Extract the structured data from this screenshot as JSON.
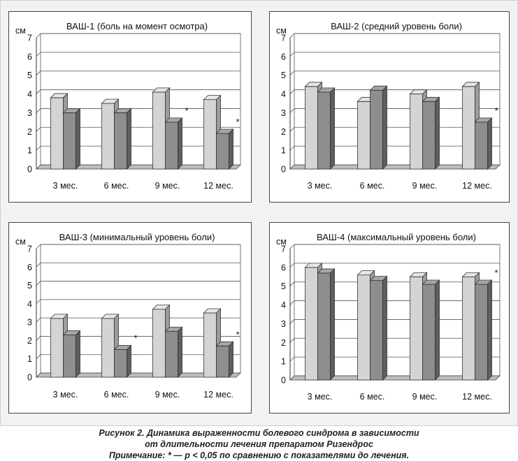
{
  "chart_data": [
    {
      "type": "bar",
      "title": "ВАШ-1 (боль на момент осмотра)",
      "ylabel": "см",
      "ylim": [
        0,
        7
      ],
      "yticks": [
        "0",
        "1",
        "2",
        "3",
        "4",
        "5",
        "6",
        "7"
      ],
      "grid": true,
      "categories": [
        "3 мес.",
        "6 мес.",
        "9 мес.",
        "12 мес."
      ],
      "series": [
        {
          "values": [
            3.8,
            3.5,
            4.1,
            3.7
          ]
        },
        {
          "values": [
            3.0,
            3.0,
            2.5,
            1.9
          ]
        }
      ],
      "annotations": [
        {
          "category": 2,
          "series": 1,
          "text": "*"
        },
        {
          "category": 3,
          "series": 1,
          "text": "*"
        }
      ]
    },
    {
      "type": "bar",
      "title": "ВАШ-2 (средний уровень боли)",
      "ylabel": "см",
      "ylim": [
        0,
        7
      ],
      "yticks": [
        "0",
        "1",
        "2",
        "3",
        "4",
        "5",
        "6",
        "7"
      ],
      "grid": true,
      "categories": [
        "3 мес.",
        "6 мес.",
        "9 мес.",
        "12 мес."
      ],
      "series": [
        {
          "values": [
            4.4,
            3.6,
            4.0,
            4.4
          ]
        },
        {
          "values": [
            4.1,
            4.2,
            3.6,
            2.5
          ]
        }
      ],
      "annotations": [
        {
          "category": 3,
          "series": 1,
          "text": "*"
        }
      ]
    },
    {
      "type": "bar",
      "title": "ВАШ-3 (минимальный уровень боли)",
      "ylabel": "см",
      "ylim": [
        0,
        7
      ],
      "yticks": [
        "0",
        "1",
        "2",
        "3",
        "4",
        "5",
        "6",
        "7"
      ],
      "grid": true,
      "categories": [
        "3 мес.",
        "6 мес.",
        "9 мес.",
        "12 мес."
      ],
      "series": [
        {
          "values": [
            3.2,
            3.2,
            3.7,
            3.5
          ]
        },
        {
          "values": [
            2.3,
            1.5,
            2.5,
            1.7
          ]
        }
      ],
      "annotations": [
        {
          "category": 1,
          "series": 1,
          "text": "*"
        },
        {
          "category": 3,
          "series": 1,
          "text": "*"
        }
      ]
    },
    {
      "type": "bar",
      "title": "ВАШ-4 (максимальный уровень боли)",
      "ylabel": "см",
      "ylim": [
        0,
        7
      ],
      "yticks": [
        "0",
        "1",
        "2",
        "3",
        "4",
        "5",
        "6",
        "7"
      ],
      "grid": true,
      "categories": [
        "3 мес.",
        "6 мес.",
        "9 мес.",
        "12 мес."
      ],
      "series": [
        {
          "values": [
            6.0,
            5.6,
            5.5,
            5.5
          ]
        },
        {
          "values": [
            5.7,
            5.3,
            5.1,
            5.1
          ]
        }
      ],
      "annotations": [
        {
          "category": 3,
          "series": 1,
          "text": "*"
        }
      ]
    }
  ],
  "colors": {
    "series_front": [
      "#d4d4d4",
      "#8e8e8e"
    ],
    "series_top": [
      "#e6e6e6",
      "#a6a6a6"
    ],
    "series_side": [
      "#9c9c9c",
      "#5e5e5e"
    ],
    "plot_background": "#ffffff",
    "panel_background": "#ffffff",
    "figure_background": "#f2f2f2",
    "floor": "#8a8a8a"
  },
  "caption": {
    "line1": "Рисунок 2. Динамика выраженности болевого синдрома в зависимости",
    "line2": "от длительности лечения препаратом Ризендрос",
    "line3": "Примечание: * — p < 0,05 по сравнению с показателями до лечения."
  }
}
